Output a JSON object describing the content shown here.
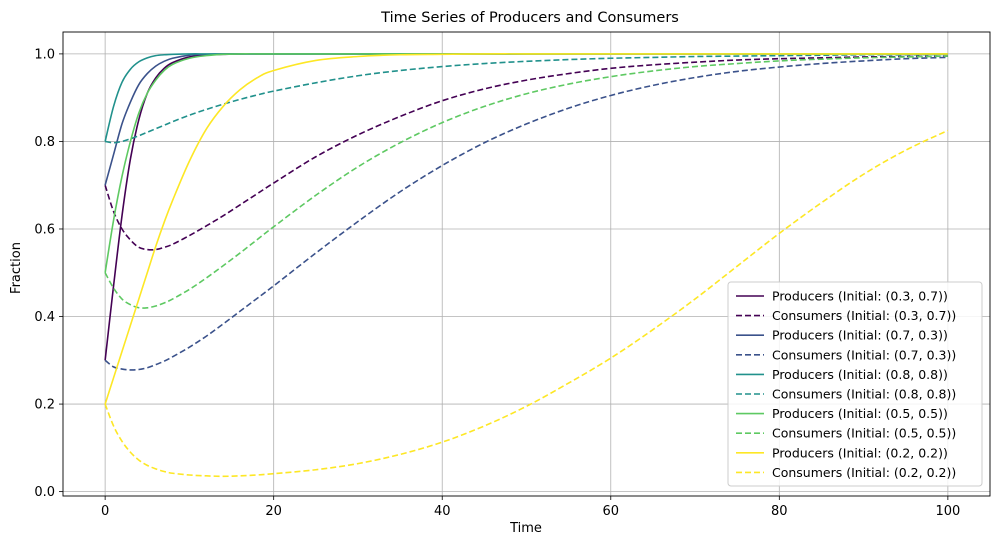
{
  "chart_data": {
    "type": "line",
    "title": "Time Series of Producers and Consumers",
    "xlabel": "Time",
    "ylabel": "Fraction",
    "xlim": [
      -5,
      105
    ],
    "ylim": [
      -0.01,
      1.05
    ],
    "xticks": [
      0,
      20,
      40,
      60,
      80,
      100
    ],
    "yticks": [
      0.0,
      0.2,
      0.4,
      0.6,
      0.8,
      1.0
    ],
    "grid": true,
    "legend_position": "lower-right",
    "x": [
      0,
      1,
      2,
      3,
      4,
      5,
      6,
      7,
      8,
      10,
      12,
      14,
      16,
      18,
      20,
      25,
      30,
      35,
      40,
      45,
      50,
      55,
      60,
      65,
      70,
      75,
      80,
      85,
      90,
      95,
      100
    ],
    "series": [
      {
        "name": "Producers (Initial: (0.3, 0.7))",
        "color": "#440154",
        "style": "solid",
        "values": [
          0.3,
          0.47,
          0.63,
          0.76,
          0.85,
          0.91,
          0.945,
          0.967,
          0.98,
          0.993,
          0.998,
          0.999,
          1.0,
          1.0,
          1.0,
          1.0,
          1.0,
          1.0,
          1.0,
          1.0,
          1.0,
          1.0,
          1.0,
          1.0,
          1.0,
          1.0,
          1.0,
          1.0,
          1.0,
          1.0,
          1.0
        ]
      },
      {
        "name": "Consumers (Initial: (0.3, 0.7))",
        "color": "#440154",
        "style": "dashed",
        "values": [
          0.7,
          0.64,
          0.6,
          0.575,
          0.558,
          0.553,
          0.553,
          0.558,
          0.565,
          0.585,
          0.607,
          0.63,
          0.655,
          0.68,
          0.705,
          0.765,
          0.815,
          0.857,
          0.893,
          0.92,
          0.94,
          0.955,
          0.967,
          0.975,
          0.981,
          0.986,
          0.989,
          0.991,
          0.993,
          0.994,
          0.995
        ]
      },
      {
        "name": "Producers (Initial: (0.7, 0.3))",
        "color": "#3b528b",
        "style": "solid",
        "values": [
          0.7,
          0.77,
          0.84,
          0.89,
          0.93,
          0.955,
          0.972,
          0.983,
          0.99,
          0.997,
          0.999,
          1.0,
          1.0,
          1.0,
          1.0,
          1.0,
          1.0,
          1.0,
          1.0,
          1.0,
          1.0,
          1.0,
          1.0,
          1.0,
          1.0,
          1.0,
          1.0,
          1.0,
          1.0,
          1.0,
          1.0
        ]
      },
      {
        "name": "Consumers (Initial: (0.7, 0.3))",
        "color": "#3b528b",
        "style": "dashed",
        "values": [
          0.3,
          0.285,
          0.28,
          0.278,
          0.279,
          0.283,
          0.29,
          0.298,
          0.308,
          0.33,
          0.355,
          0.383,
          0.412,
          0.441,
          0.47,
          0.545,
          0.617,
          0.685,
          0.745,
          0.797,
          0.84,
          0.876,
          0.905,
          0.928,
          0.946,
          0.96,
          0.97,
          0.978,
          0.984,
          0.989,
          0.992
        ]
      },
      {
        "name": "Producers (Initial: (0.8, 0.8))",
        "color": "#21918c",
        "style": "solid",
        "values": [
          0.8,
          0.88,
          0.935,
          0.965,
          0.982,
          0.991,
          0.996,
          0.998,
          0.999,
          1.0,
          1.0,
          1.0,
          1.0,
          1.0,
          1.0,
          1.0,
          1.0,
          1.0,
          1.0,
          1.0,
          1.0,
          1.0,
          1.0,
          1.0,
          1.0,
          1.0,
          1.0,
          1.0,
          1.0,
          1.0,
          1.0
        ]
      },
      {
        "name": "Consumers (Initial: (0.8, 0.8))",
        "color": "#21918c",
        "style": "dashed",
        "values": [
          0.8,
          0.797,
          0.8,
          0.806,
          0.813,
          0.821,
          0.829,
          0.837,
          0.845,
          0.86,
          0.873,
          0.885,
          0.896,
          0.906,
          0.915,
          0.934,
          0.95,
          0.962,
          0.971,
          0.978,
          0.983,
          0.987,
          0.99,
          0.992,
          0.994,
          0.995,
          0.996,
          0.997,
          0.998,
          0.998,
          0.999
        ]
      },
      {
        "name": "Producers (Initial: (0.5, 0.5))",
        "color": "#5ec962",
        "style": "solid",
        "values": [
          0.5,
          0.62,
          0.72,
          0.8,
          0.865,
          0.91,
          0.94,
          0.962,
          0.976,
          0.99,
          0.996,
          0.999,
          1.0,
          1.0,
          1.0,
          1.0,
          1.0,
          1.0,
          1.0,
          1.0,
          1.0,
          1.0,
          1.0,
          1.0,
          1.0,
          1.0,
          1.0,
          1.0,
          1.0,
          1.0,
          1.0
        ]
      },
      {
        "name": "Consumers (Initial: (0.5, 0.5))",
        "color": "#5ec962",
        "style": "dashed",
        "values": [
          0.5,
          0.465,
          0.44,
          0.427,
          0.42,
          0.42,
          0.424,
          0.431,
          0.44,
          0.462,
          0.488,
          0.516,
          0.545,
          0.575,
          0.605,
          0.677,
          0.742,
          0.797,
          0.843,
          0.88,
          0.909,
          0.931,
          0.948,
          0.961,
          0.971,
          0.978,
          0.984,
          0.988,
          0.991,
          0.993,
          0.995
        ]
      },
      {
        "name": "Producers (Initial: (0.2, 0.2))",
        "color": "#fde725",
        "style": "solid",
        "values": [
          0.2,
          0.26,
          0.32,
          0.38,
          0.44,
          0.5,
          0.56,
          0.615,
          0.665,
          0.755,
          0.828,
          0.88,
          0.918,
          0.945,
          0.962,
          0.985,
          0.994,
          0.998,
          0.999,
          1.0,
          1.0,
          1.0,
          1.0,
          1.0,
          1.0,
          1.0,
          1.0,
          1.0,
          1.0,
          1.0,
          1.0
        ]
      },
      {
        "name": "Consumers (Initial: (0.2, 0.2))",
        "color": "#fde725",
        "style": "dashed",
        "values": [
          0.2,
          0.15,
          0.115,
          0.09,
          0.072,
          0.06,
          0.052,
          0.046,
          0.042,
          0.038,
          0.036,
          0.035,
          0.036,
          0.038,
          0.041,
          0.05,
          0.064,
          0.085,
          0.113,
          0.15,
          0.195,
          0.248,
          0.305,
          0.37,
          0.44,
          0.515,
          0.59,
          0.66,
          0.725,
          0.78,
          0.825
        ]
      }
    ]
  }
}
